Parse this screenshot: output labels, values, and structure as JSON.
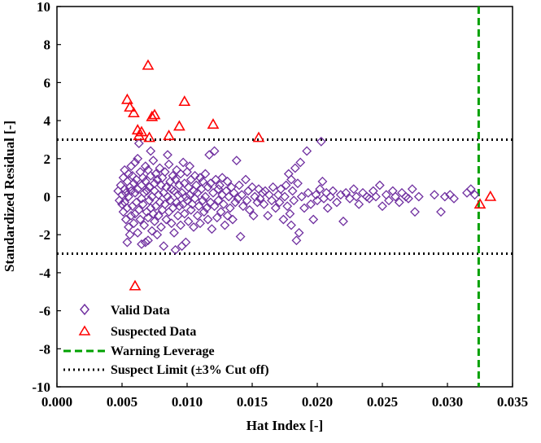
{
  "chart_data": {
    "type": "scatter",
    "title": "",
    "xlabel": "Hat Index [-]",
    "ylabel": "Standardized  Residual [-]",
    "xlim": [
      0.0,
      0.035
    ],
    "ylim": [
      -10,
      10
    ],
    "x_ticks": [
      "0.000",
      "0.005",
      "0.010",
      "0.015",
      "0.020",
      "0.025",
      "0.030",
      "0.035"
    ],
    "y_ticks": [
      "10",
      "8",
      "6",
      "4",
      "2",
      "0",
      "-2",
      "-4",
      "-6",
      "-8",
      "-10"
    ],
    "x_tick_values": [
      0.0,
      0.005,
      0.01,
      0.015,
      0.02,
      0.025,
      0.03,
      0.035
    ],
    "y_tick_values": [
      10,
      8,
      6,
      4,
      2,
      0,
      -2,
      -4,
      -6,
      -8,
      -10
    ],
    "warning_leverage": 0.0324,
    "suspect_limit": 3,
    "legend": {
      "position": "bottom-left",
      "entries": [
        {
          "label": "Valid Data",
          "color": "#7030A0",
          "marker": "diamond"
        },
        {
          "label": "Suspected Data",
          "color": "#FF0000",
          "marker": "triangle"
        },
        {
          "label": "Warning Leverage",
          "color": "#00A000",
          "marker": "dashed-line"
        },
        {
          "label": "Suspect Limit (±3% Cut off)",
          "color": "#000000",
          "marker": "dotted-line"
        }
      ]
    },
    "series": [
      {
        "name": "Valid Data",
        "marker": "diamond",
        "color": "#7030A0",
        "points": [
          [
            0.0047,
            0.3
          ],
          [
            0.0048,
            -0.2
          ],
          [
            0.0049,
            0.6
          ],
          [
            0.005,
            -0.4
          ],
          [
            0.005,
            0.1
          ],
          [
            0.0051,
            1.0
          ],
          [
            0.0051,
            -0.8
          ],
          [
            0.0052,
            0.4
          ],
          [
            0.0052,
            -0.3
          ],
          [
            0.0052,
            1.4
          ],
          [
            0.0053,
            -1.2
          ],
          [
            0.0053,
            0.2
          ],
          [
            0.0054,
            0.8
          ],
          [
            0.0054,
            -0.6
          ],
          [
            0.0054,
            -2.4
          ],
          [
            0.0055,
            1.2
          ],
          [
            0.0055,
            -1.6
          ],
          [
            0.0055,
            0.0
          ],
          [
            0.0056,
            0.5
          ],
          [
            0.0056,
            -2.0
          ],
          [
            0.0057,
            1.6
          ],
          [
            0.0057,
            -1.0
          ],
          [
            0.0057,
            0.3
          ],
          [
            0.0058,
            -0.5
          ],
          [
            0.0058,
            1.1
          ],
          [
            0.0059,
            -1.4
          ],
          [
            0.0059,
            0.7
          ],
          [
            0.006,
            0.2
          ],
          [
            0.006,
            -0.9
          ],
          [
            0.006,
            1.8
          ],
          [
            0.0061,
            -0.3
          ],
          [
            0.0061,
            0.9
          ],
          [
            0.0062,
            2.0
          ],
          [
            0.0062,
            -1.9
          ],
          [
            0.0062,
            0.4
          ],
          [
            0.0063,
            2.8
          ],
          [
            0.0063,
            -0.7
          ],
          [
            0.0064,
            1.3
          ],
          [
            0.0064,
            -1.2
          ],
          [
            0.0065,
            0.6
          ],
          [
            0.0065,
            -2.5
          ],
          [
            0.0065,
            -0.1
          ],
          [
            0.0066,
            1.0
          ],
          [
            0.0066,
            -0.4
          ],
          [
            0.0067,
            0.2
          ],
          [
            0.0067,
            -1.5
          ],
          [
            0.0068,
            1.6
          ],
          [
            0.0068,
            -2.4
          ],
          [
            0.0068,
            0.8
          ],
          [
            0.0069,
            -0.8
          ],
          [
            0.0069,
            0.3
          ],
          [
            0.007,
            1.4
          ],
          [
            0.007,
            -1.1
          ],
          [
            0.007,
            -2.3
          ],
          [
            0.0071,
            0.5
          ],
          [
            0.0071,
            -0.2
          ],
          [
            0.0072,
            2.4
          ],
          [
            0.0072,
            -0.6
          ],
          [
            0.0072,
            1.1
          ],
          [
            0.0073,
            -1.8
          ],
          [
            0.0073,
            0.0
          ],
          [
            0.0074,
            1.9
          ],
          [
            0.0074,
            -0.9
          ],
          [
            0.0075,
            0.7
          ],
          [
            0.0075,
            -1.3
          ],
          [
            0.0075,
            0.3
          ],
          [
            0.0076,
            1.2
          ],
          [
            0.0076,
            -0.5
          ],
          [
            0.0077,
            -2.0
          ],
          [
            0.0077,
            0.9
          ],
          [
            0.0078,
            0.1
          ],
          [
            0.0078,
            -1.0
          ],
          [
            0.0079,
            1.5
          ],
          [
            0.0079,
            -0.3
          ],
          [
            0.008,
            0.6
          ],
          [
            0.008,
            -1.6
          ],
          [
            0.0081,
            1.0
          ],
          [
            0.0081,
            -0.7
          ],
          [
            0.0082,
            0.2
          ],
          [
            0.0082,
            -2.6
          ],
          [
            0.0083,
            1.3
          ],
          [
            0.0083,
            -0.4
          ],
          [
            0.0084,
            0.5
          ],
          [
            0.0084,
            -1.2
          ],
          [
            0.0085,
            2.2
          ],
          [
            0.0085,
            0.0
          ],
          [
            0.0086,
            -0.8
          ],
          [
            0.0086,
            1.7
          ],
          [
            0.0087,
            -0.2
          ],
          [
            0.0087,
            0.8
          ],
          [
            0.0088,
            -1.4
          ],
          [
            0.0088,
            0.4
          ],
          [
            0.0089,
            1.1
          ],
          [
            0.0089,
            -0.6
          ],
          [
            0.009,
            0.3
          ],
          [
            0.009,
            -1.9
          ],
          [
            0.0091,
            -2.8
          ],
          [
            0.0091,
            0.9
          ],
          [
            0.0092,
            -0.3
          ],
          [
            0.0092,
            1.4
          ],
          [
            0.0093,
            0.1
          ],
          [
            0.0093,
            -1.0
          ],
          [
            0.0094,
            0.6
          ],
          [
            0.0094,
            -0.5
          ],
          [
            0.0095,
            1.2
          ],
          [
            0.0095,
            -1.5
          ],
          [
            0.0096,
            0.2
          ],
          [
            0.0096,
            -2.6
          ],
          [
            0.0097,
            1.8
          ],
          [
            0.0097,
            -0.4
          ],
          [
            0.0098,
            0.7
          ],
          [
            0.0098,
            -0.9
          ],
          [
            0.0099,
            0.0
          ],
          [
            0.0099,
            -2.4
          ],
          [
            0.01,
            1.3
          ],
          [
            0.01,
            -0.2
          ],
          [
            0.0101,
            0.5
          ],
          [
            0.0101,
            -1.3
          ],
          [
            0.0102,
            1.6
          ],
          [
            0.0102,
            0.1
          ],
          [
            0.0103,
            -0.7
          ],
          [
            0.0103,
            0.9
          ],
          [
            0.0104,
            -0.4
          ],
          [
            0.0105,
            0.3
          ],
          [
            0.0105,
            -1.6
          ],
          [
            0.0106,
            1.1
          ],
          [
            0.0106,
            -0.1
          ],
          [
            0.0107,
            0.6
          ],
          [
            0.0108,
            -1.0
          ],
          [
            0.0108,
            0.2
          ],
          [
            0.0109,
            -0.5
          ],
          [
            0.011,
            1.0
          ],
          [
            0.011,
            -1.4
          ],
          [
            0.0111,
            0.4
          ],
          [
            0.0112,
            -0.2
          ],
          [
            0.0112,
            0.8
          ],
          [
            0.0113,
            -0.8
          ],
          [
            0.0114,
            1.2
          ],
          [
            0.0114,
            0.0
          ],
          [
            0.0115,
            -0.6
          ],
          [
            0.0116,
            0.5
          ],
          [
            0.0116,
            -1.2
          ],
          [
            0.0117,
            2.2
          ],
          [
            0.0118,
            -0.3
          ],
          [
            0.0118,
            0.7
          ],
          [
            0.0119,
            -1.7
          ],
          [
            0.012,
            0.2
          ],
          [
            0.0121,
            2.4
          ],
          [
            0.0121,
            -0.5
          ],
          [
            0.0122,
            0.9
          ],
          [
            0.0123,
            -1.1
          ],
          [
            0.0124,
            0.4
          ],
          [
            0.0124,
            -0.2
          ],
          [
            0.0125,
            0.6
          ],
          [
            0.0126,
            -0.8
          ],
          [
            0.0127,
            1.0
          ],
          [
            0.0127,
            0.1
          ],
          [
            0.0128,
            -0.4
          ],
          [
            0.0129,
            -1.5
          ],
          [
            0.013,
            0.3
          ],
          [
            0.0131,
            0.8
          ],
          [
            0.0131,
            -1.0
          ],
          [
            0.0132,
            0.0
          ],
          [
            0.0133,
            -0.6
          ],
          [
            0.0134,
            0.5
          ],
          [
            0.0135,
            -1.2
          ],
          [
            0.0136,
            0.2
          ],
          [
            0.0137,
            -0.3
          ],
          [
            0.0138,
            1.9
          ],
          [
            0.0139,
            -0.1
          ],
          [
            0.014,
            0.6
          ],
          [
            0.0141,
            -2.1
          ],
          [
            0.0142,
            0.1
          ],
          [
            0.0143,
            -0.5
          ],
          [
            0.0145,
            0.9
          ],
          [
            0.0146,
            -0.2
          ],
          [
            0.0147,
            0.3
          ],
          [
            0.0148,
            -0.7
          ],
          [
            0.015,
            0.5
          ],
          [
            0.0151,
            -1.0
          ],
          [
            0.0152,
            0.0
          ],
          [
            0.0154,
            -0.3
          ],
          [
            0.0155,
            0.4
          ],
          [
            0.0156,
            -0.1
          ],
          [
            0.0158,
            0.2
          ],
          [
            0.0159,
            -0.4
          ],
          [
            0.016,
            0.3
          ],
          [
            0.0162,
            -1.0
          ],
          [
            0.0163,
            0.1
          ],
          [
            0.0165,
            -0.2
          ],
          [
            0.0166,
            0.5
          ],
          [
            0.0168,
            -0.6
          ],
          [
            0.017,
            0.1
          ],
          [
            0.0171,
            -0.3
          ],
          [
            0.0172,
            0.4
          ],
          [
            0.0174,
            -1.2
          ],
          [
            0.0175,
            0.0
          ],
          [
            0.0176,
            0.6
          ],
          [
            0.0177,
            -0.5
          ],
          [
            0.0178,
            1.2
          ],
          [
            0.0179,
            -0.9
          ],
          [
            0.018,
            0.9
          ],
          [
            0.018,
            -1.5
          ],
          [
            0.0181,
            0.3
          ],
          [
            0.0182,
            -0.2
          ],
          [
            0.0183,
            1.5
          ],
          [
            0.0184,
            -2.3
          ],
          [
            0.0185,
            0.7
          ],
          [
            0.0186,
            -1.9
          ],
          [
            0.0187,
            1.8
          ],
          [
            0.0188,
            0.0
          ],
          [
            0.019,
            -0.6
          ],
          [
            0.0192,
            2.4
          ],
          [
            0.0193,
            0.2
          ],
          [
            0.0195,
            -0.4
          ],
          [
            0.0197,
            -1.2
          ],
          [
            0.0199,
            0.1
          ],
          [
            0.02,
            -0.2
          ],
          [
            0.0202,
            0.4
          ],
          [
            0.0203,
            2.9
          ],
          [
            0.0204,
            0.8
          ],
          [
            0.0205,
            -0.1
          ],
          [
            0.0207,
            0.2
          ],
          [
            0.0208,
            -0.6
          ],
          [
            0.021,
            0.0
          ],
          [
            0.0212,
            0.3
          ],
          [
            0.0215,
            -0.3
          ],
          [
            0.0218,
            0.1
          ],
          [
            0.022,
            -1.3
          ],
          [
            0.0222,
            0.2
          ],
          [
            0.0225,
            -0.1
          ],
          [
            0.0228,
            0.4
          ],
          [
            0.023,
            0.0
          ],
          [
            0.0232,
            -0.4
          ],
          [
            0.0235,
            0.2
          ],
          [
            0.0238,
            0.0
          ],
          [
            0.024,
            -0.1
          ],
          [
            0.0243,
            0.3
          ],
          [
            0.0245,
            0.0
          ],
          [
            0.0248,
            0.6
          ],
          [
            0.025,
            -0.5
          ],
          [
            0.0253,
            0.1
          ],
          [
            0.0255,
            -0.2
          ],
          [
            0.0258,
            0.3
          ],
          [
            0.026,
            0.0
          ],
          [
            0.0263,
            -0.3
          ],
          [
            0.0265,
            0.2
          ],
          [
            0.0268,
            0.0
          ],
          [
            0.027,
            -0.1
          ],
          [
            0.0273,
            0.4
          ],
          [
            0.0275,
            -0.8
          ],
          [
            0.0278,
            0.0
          ],
          [
            0.029,
            0.1
          ],
          [
            0.0295,
            -0.8
          ],
          [
            0.0298,
            0.0
          ],
          [
            0.0302,
            0.1
          ],
          [
            0.0305,
            -0.1
          ],
          [
            0.0315,
            0.2
          ],
          [
            0.0318,
            0.4
          ],
          [
            0.0321,
            0.1
          ]
        ]
      },
      {
        "name": "Suspected Data",
        "marker": "triangle",
        "color": "#FF0000",
        "points": [
          [
            0.0054,
            5.1
          ],
          [
            0.0056,
            4.7
          ],
          [
            0.0059,
            4.4
          ],
          [
            0.0062,
            3.5
          ],
          [
            0.0063,
            3.2
          ],
          [
            0.0065,
            3.4
          ],
          [
            0.007,
            6.9
          ],
          [
            0.0071,
            3.1
          ],
          [
            0.0073,
            4.2
          ],
          [
            0.0075,
            4.3
          ],
          [
            0.0086,
            3.2
          ],
          [
            0.0094,
            3.7
          ],
          [
            0.0098,
            5.0
          ],
          [
            0.012,
            3.8
          ],
          [
            0.0155,
            3.1
          ],
          [
            0.006,
            -4.7
          ],
          [
            0.0325,
            -0.4
          ],
          [
            0.0333,
            0.0
          ]
        ]
      }
    ]
  }
}
